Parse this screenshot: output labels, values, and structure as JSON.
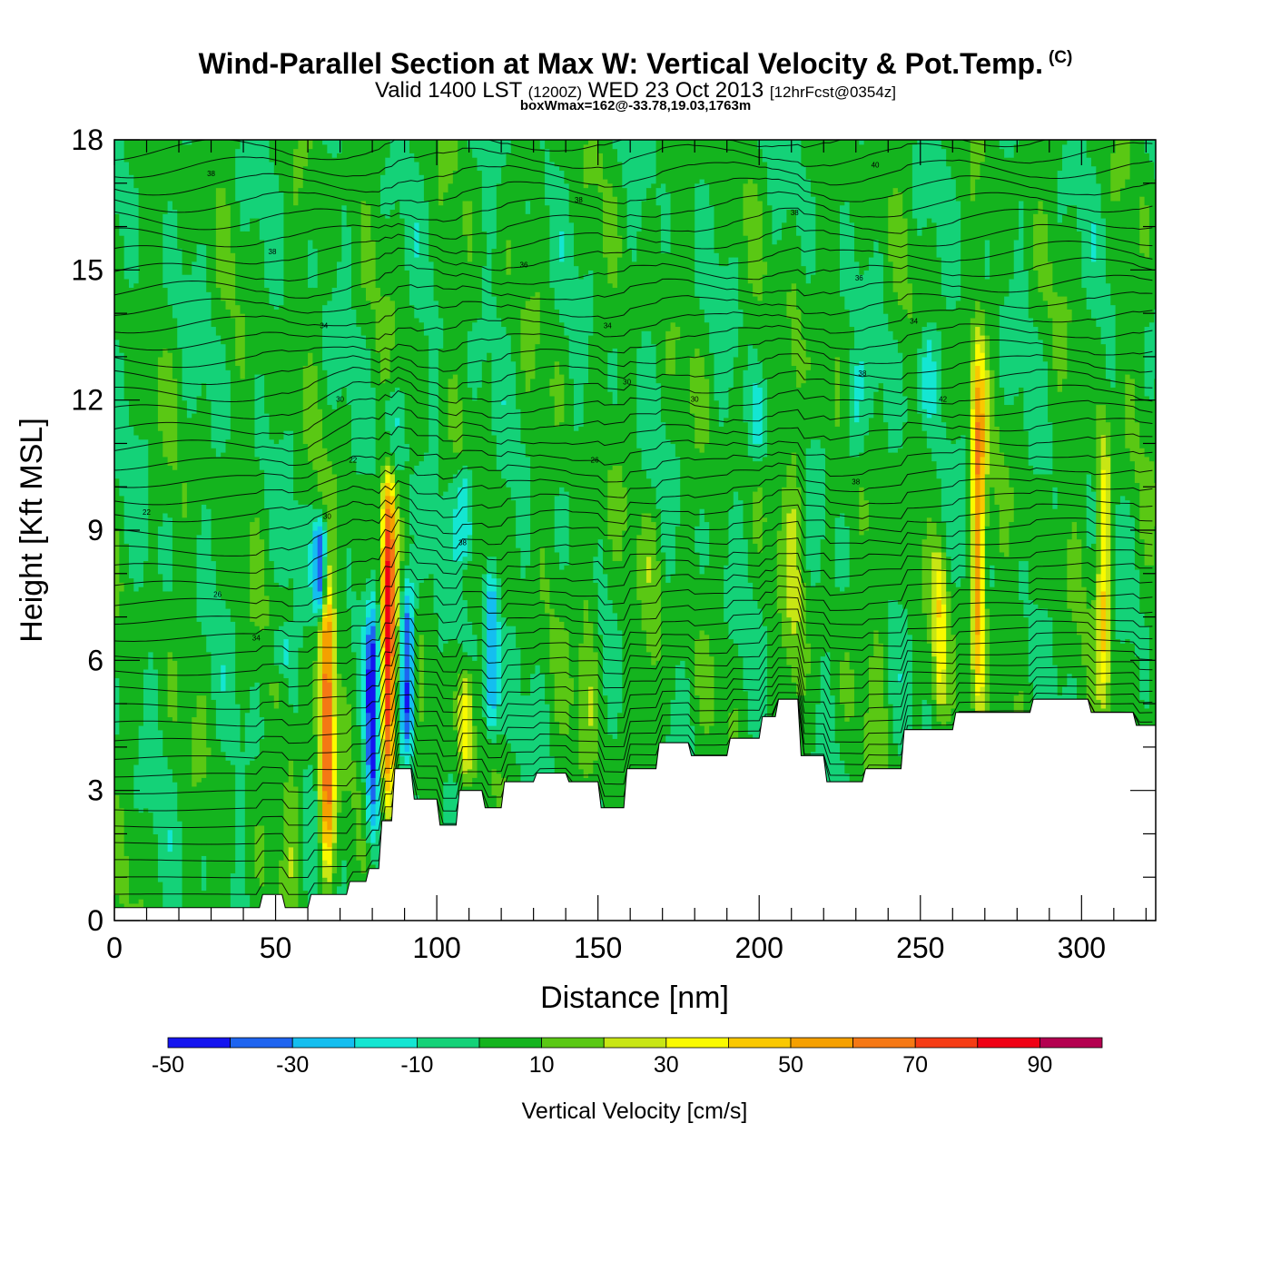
{
  "header": {
    "title": "Wind-Parallel Section at Max W: Vertical Velocity & Pot.Temp.",
    "copyright": "(C)",
    "valid_prefix": "Valid 1400 LST",
    "valid_utc": "(1200Z)",
    "valid_date": "WED 23 Oct 2013",
    "forecast": "[12hrFcst@0354z]",
    "boxwmax": "boxWmax=162@-33.78,19.03,1763m"
  },
  "chart_data": {
    "type": "heatmap",
    "title": "Wind-Parallel Section at Max W: Vertical Velocity & Pot.Temp.",
    "xlabel": "Distance [nm]",
    "ylabel": "Height [Kft MSL]",
    "xlim": [
      0,
      323
    ],
    "ylim": [
      0,
      18
    ],
    "xticks": [
      0,
      50,
      100,
      150,
      200,
      250,
      300
    ],
    "yticks": [
      0,
      3,
      6,
      9,
      12,
      15,
      18
    ],
    "colorbar": {
      "label": "Vertical Velocity [cm/s]",
      "bounds": [
        -50,
        -40,
        -30,
        -20,
        -10,
        0,
        10,
        20,
        30,
        40,
        50,
        60,
        70,
        80,
        90,
        100
      ],
      "tick_labels": [
        "-50",
        "-30",
        "-10",
        "10",
        "30",
        "50",
        "70",
        "90"
      ],
      "tick_values": [
        -50,
        -30,
        -10,
        10,
        30,
        50,
        70,
        90
      ],
      "colors": [
        "#1414f0",
        "#1e64f0",
        "#14bef0",
        "#14e6d2",
        "#14d278",
        "#14b41e",
        "#5ac814",
        "#c8e614",
        "#fafa00",
        "#fac800",
        "#f5a000",
        "#f57814",
        "#f53c14",
        "#f00014",
        "#b40050"
      ]
    },
    "background_value": 3,
    "updrafts": [
      {
        "x": 66,
        "y_bottom": 1.0,
        "y_top": 8.2,
        "peak": 68
      },
      {
        "x": 85,
        "y_bottom": 2.5,
        "y_top": 10.5,
        "peak": 82
      },
      {
        "x": 109,
        "y_bottom": 3.2,
        "y_top": 5.8,
        "peak": 35
      },
      {
        "x": 147,
        "y_bottom": 3.4,
        "y_top": 10.0,
        "peak": 18
      },
      {
        "x": 211,
        "y_bottom": 4.5,
        "y_top": 14.7,
        "peak": 18
      },
      {
        "x": 256,
        "y_bottom": 4.7,
        "y_top": 8.5,
        "peak": 32
      },
      {
        "x": 268,
        "y_bottom": 4.9,
        "y_top": 13.4,
        "peak": 60
      },
      {
        "x": 307,
        "y_bottom": 5.0,
        "y_top": 11.5,
        "peak": 42
      },
      {
        "x": 55,
        "y_bottom": 0.4,
        "y_top": 4.5,
        "peak": 16
      },
      {
        "x": 167,
        "y_bottom": 4.2,
        "y_top": 9.5,
        "peak": 14
      },
      {
        "x": 237,
        "y_bottom": 4.0,
        "y_top": 10.0,
        "peak": 13
      }
    ],
    "downdrafts": [
      {
        "x": 64,
        "y_bottom": 7.0,
        "y_top": 9.3,
        "peak": -45
      },
      {
        "x": 80,
        "y_bottom": 1.8,
        "y_top": 7.4,
        "peak": -42
      },
      {
        "x": 91,
        "y_bottom": 3.8,
        "y_top": 8.0,
        "peak": -44
      },
      {
        "x": 117,
        "y_bottom": 4.2,
        "y_top": 8.0,
        "peak": -35
      },
      {
        "x": 109,
        "y_bottom": 8.3,
        "y_top": 10.5,
        "peak": -25
      },
      {
        "x": 86,
        "y_bottom": 10.2,
        "y_top": 12.2,
        "peak": -15
      },
      {
        "x": 52,
        "y_bottom": 5.6,
        "y_top": 6.8,
        "peak": -15
      },
      {
        "x": 229,
        "y_bottom": 10.5,
        "y_top": 13.0,
        "peak": -16
      },
      {
        "x": 200,
        "y_bottom": 10.5,
        "y_top": 12.5,
        "peak": -12
      },
      {
        "x": 252,
        "y_bottom": 11.5,
        "y_top": 13.8,
        "peak": -15
      }
    ],
    "terrain_x": [
      0,
      45,
      46,
      52,
      53,
      60,
      61,
      72,
      73,
      78,
      79,
      82,
      83,
      86,
      87,
      92,
      93,
      100,
      101,
      106,
      107,
      114,
      115,
      120,
      121,
      130,
      131,
      140,
      141,
      150,
      151,
      158,
      159,
      168,
      169,
      178,
      179,
      190,
      191,
      200,
      201,
      205,
      206,
      212,
      213,
      220,
      221,
      232,
      233,
      244,
      245,
      260,
      261,
      284,
      285,
      302,
      303,
      316,
      317,
      323
    ],
    "terrain_y": [
      0.3,
      0.3,
      0.6,
      0.6,
      0.3,
      0.3,
      0.6,
      0.6,
      0.9,
      0.9,
      1.2,
      1.2,
      2.3,
      2.3,
      3.5,
      3.5,
      2.8,
      2.8,
      2.2,
      2.2,
      3.0,
      3.0,
      2.6,
      2.6,
      3.2,
      3.2,
      3.4,
      3.4,
      3.2,
      3.2,
      2.6,
      2.6,
      3.5,
      3.5,
      4.1,
      4.1,
      3.8,
      3.8,
      4.2,
      4.2,
      4.7,
      4.7,
      5.1,
      5.1,
      3.8,
      3.8,
      3.2,
      3.2,
      3.5,
      3.5,
      4.4,
      4.4,
      4.8,
      4.8,
      5.1,
      5.1,
      4.8,
      4.8,
      4.5,
      4.5
    ],
    "theta_contours": {
      "count": 44,
      "labels": [
        {
          "text": "22",
          "x": 10,
          "y": 9.4
        },
        {
          "text": "26",
          "x": 32,
          "y": 7.5
        },
        {
          "text": "34",
          "x": 44,
          "y": 6.5
        },
        {
          "text": "30",
          "x": 66,
          "y": 9.3
        },
        {
          "text": "22",
          "x": 74,
          "y": 10.6
        },
        {
          "text": "30",
          "x": 70,
          "y": 12.0
        },
        {
          "text": "34",
          "x": 65,
          "y": 13.7
        },
        {
          "text": "38",
          "x": 49,
          "y": 15.4
        },
        {
          "text": "38",
          "x": 30,
          "y": 17.2
        },
        {
          "text": "38",
          "x": 108,
          "y": 8.7
        },
        {
          "text": "26",
          "x": 149,
          "y": 10.6
        },
        {
          "text": "30",
          "x": 159,
          "y": 12.4
        },
        {
          "text": "34",
          "x": 153,
          "y": 13.7
        },
        {
          "text": "36",
          "x": 127,
          "y": 15.1
        },
        {
          "text": "38",
          "x": 144,
          "y": 16.6
        },
        {
          "text": "30",
          "x": 180,
          "y": 12.0
        },
        {
          "text": "38",
          "x": 211,
          "y": 16.3
        },
        {
          "text": "38",
          "x": 230,
          "y": 10.1
        },
        {
          "text": "38",
          "x": 232,
          "y": 12.6
        },
        {
          "text": "36",
          "x": 231,
          "y": 14.8
        },
        {
          "text": "40",
          "x": 236,
          "y": 17.4
        },
        {
          "text": "34",
          "x": 248,
          "y": 13.8
        },
        {
          "text": "42",
          "x": 257,
          "y": 12.0
        }
      ]
    }
  }
}
